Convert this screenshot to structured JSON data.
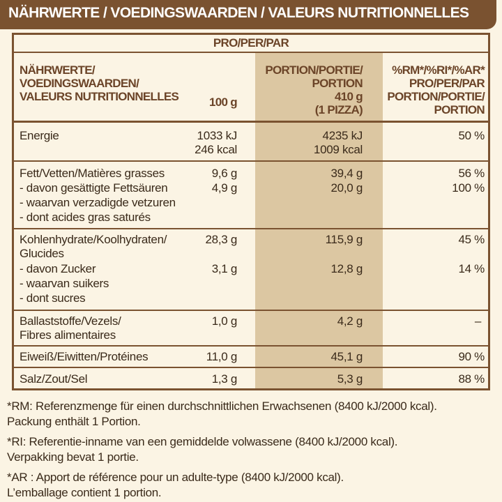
{
  "header": {
    "title": "NÄHRWERTE / VOEDINGSWAARDEN / VALEURS NUTRITIONNELLES"
  },
  "table": {
    "per_label": "PRO/PER/PAR",
    "col_nutrient": [
      "NÄHRWERTE/",
      "VOEDINGSWAARDEN/",
      "VALEURS NUTRITIONNELLES"
    ],
    "col_100g": "100 g",
    "col_portion": [
      "PORTION/PORTIE/",
      "PORTION",
      "410 g",
      "(1 PIZZA)"
    ],
    "col_ri": [
      "%RM*/%RI*/%AR*",
      "PRO/PER/PAR",
      "PORTION/PORTIE/",
      "PORTION"
    ],
    "rows": [
      {
        "labels": [
          "Energie"
        ],
        "v100": [
          "1033 kJ",
          "246 kcal"
        ],
        "vportion": [
          "4235 kJ",
          "1009 kcal"
        ],
        "ri": [
          "50 %"
        ]
      },
      {
        "labels": [
          "Fett/Vetten/Matières grasses",
          "- davon gesättigte Fettsäuren",
          "- waarvan verzadigde vetzuren",
          "- dont acides gras saturés"
        ],
        "v100": [
          "9,6 g",
          "4,9 g"
        ],
        "vportion": [
          "39,4 g",
          "20,0 g"
        ],
        "ri": [
          "56 %",
          "100 %"
        ]
      },
      {
        "labels": [
          "Kohlenhydrate/Koolhydraten/",
          "Glucides"
        ],
        "v100": [
          "28,3 g"
        ],
        "vportion": [
          "115,9 g"
        ],
        "ri": [
          "45 %"
        ]
      },
      {
        "labels": [
          "- davon Zucker",
          "- waarvan suikers",
          "- dont sucres"
        ],
        "v100": [
          "3,1 g"
        ],
        "vportion": [
          "12,8 g"
        ],
        "ri": [
          "14 %"
        ]
      },
      {
        "labels": [
          "Ballaststoffe/Vezels/",
          "Fibres alimentaires"
        ],
        "v100": [
          "1,0 g"
        ],
        "vportion": [
          "4,2 g"
        ],
        "ri": [
          "–"
        ]
      },
      {
        "labels": [
          "Eiweiß/Eiwitten/Protéines"
        ],
        "v100": [
          "11,0 g"
        ],
        "vportion": [
          "45,1 g"
        ],
        "ri": [
          "90 %"
        ]
      },
      {
        "labels": [
          "Salz/Zout/Sel"
        ],
        "v100": [
          "1,3 g"
        ],
        "vportion": [
          "5,3 g"
        ],
        "ri": [
          "88 %"
        ]
      }
    ]
  },
  "footnotes": [
    "*RM: Referenzmenge für einen durchschnittlichen Erwachsenen (8400 kJ/2000 kcal).",
    "Packung enthält 1 Portion.",
    "*RI: Referentie-inname van een gemiddelde volwassene (8400 kJ/2000 kcal).",
    "Verpakking bevat 1 portie.",
    "*AR : Apport de référence pour un adulte-type (8400 kJ/2000 kcal).",
    "L’emballage contient 1 portion."
  ],
  "colors": {
    "brown": "#7a5230",
    "shade": "#dcc7a2",
    "background": "#fbf4e4"
  }
}
